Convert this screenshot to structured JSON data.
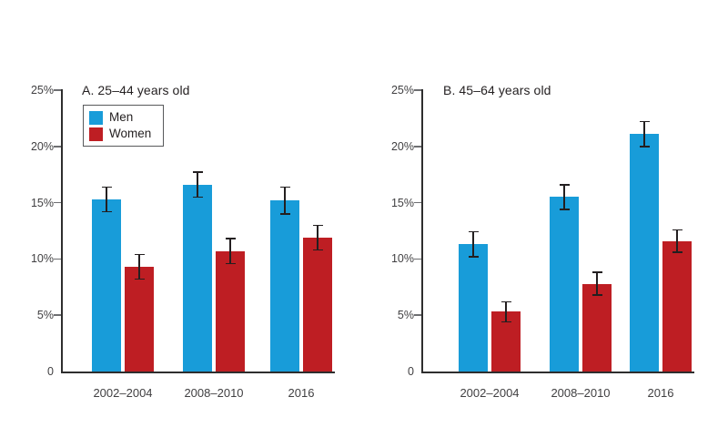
{
  "legend": {
    "items": [
      {
        "label": "Men",
        "color": "#189CD9"
      },
      {
        "label": "Women",
        "color": "#BE1E23"
      }
    ]
  },
  "chart_data": [
    {
      "type": "bar",
      "title": "A. 25–44 years old",
      "categories": [
        "2002–2004",
        "2008–2010",
        "2016"
      ],
      "series": [
        {
          "name": "Men",
          "color": "#189CD9",
          "values": [
            15.3,
            16.6,
            15.2
          ],
          "error": [
            1.1,
            1.1,
            1.2
          ]
        },
        {
          "name": "Women",
          "color": "#BE1E23",
          "values": [
            9.3,
            10.7,
            11.9
          ],
          "error": [
            1.1,
            1.1,
            1.1
          ]
        }
      ],
      "xlabel": "",
      "ylabel": "",
      "ylim": [
        0,
        25
      ],
      "ytick_labels": [
        "0",
        "5%",
        "10%",
        "15%",
        "20%",
        "25%"
      ],
      "grid": false,
      "error_bars": true,
      "legend_position": "inside-top-left"
    },
    {
      "type": "bar",
      "title": "B. 45–64 years old",
      "categories": [
        "2002–2004",
        "2008–2010",
        "2016"
      ],
      "series": [
        {
          "name": "Men",
          "color": "#189CD9",
          "values": [
            11.3,
            15.5,
            21.1
          ],
          "error": [
            1.1,
            1.1,
            1.1
          ]
        },
        {
          "name": "Women",
          "color": "#BE1E23",
          "values": [
            5.3,
            7.8,
            11.6
          ],
          "error": [
            0.9,
            1.0,
            1.0
          ]
        }
      ],
      "xlabel": "",
      "ylabel": "",
      "ylim": [
        0,
        25
      ],
      "ytick_labels": [
        "0",
        "5%",
        "10%",
        "15%",
        "20%",
        "25%"
      ],
      "grid": false,
      "error_bars": true,
      "legend_position": "none"
    }
  ]
}
